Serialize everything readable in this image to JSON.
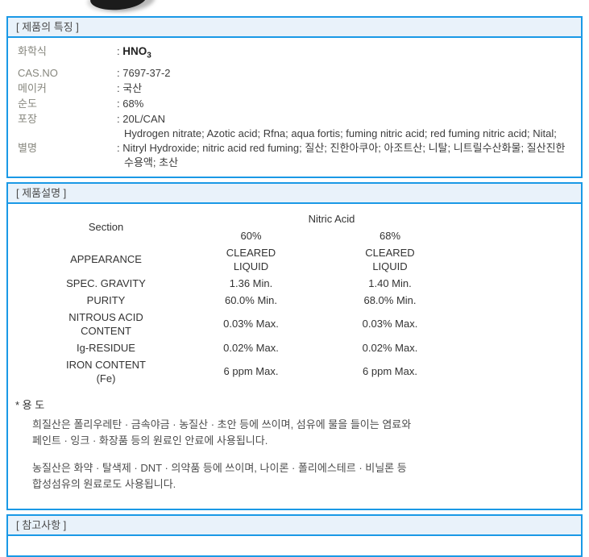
{
  "colors": {
    "border_blue": "#1a99e6",
    "header_bg": "#e9f2fa",
    "label_gray": "#87877e",
    "text_dark": "#3c3c3c"
  },
  "features": {
    "title": "[ 제품의 특징 ]",
    "rows": [
      {
        "label": "화학식",
        "colon": ":",
        "value": "HNO",
        "sub": "3"
      },
      {
        "label": "CAS.NO",
        "colon": ":",
        "value": "7697-37-2"
      },
      {
        "label": "메이커",
        "colon": ":",
        "value": "국산"
      },
      {
        "label": "순도",
        "colon": ":",
        "value": "68%"
      },
      {
        "label": "포장",
        "colon": ":",
        "value": "20L/CAN"
      }
    ],
    "alias": {
      "label": "별명",
      "line1": "Hydrogen nitrate; Azotic acid; Rfna; aqua fortis; fuming nitric acid; red fuming nitric acid; Nital;",
      "line2": ": Nitryl Hydroxide; nitric acid red fuming; 질산; 진한아쿠아; 아조트산; 니탈; 니트릴수산화물; 질산진한",
      "line3": "수용액; 초산"
    }
  },
  "description": {
    "title": "[ 제품설명 ]",
    "table": {
      "section_header": "Section",
      "group_header": "Nitric Acid",
      "col_a": "60%",
      "col_b": "68%",
      "rows": [
        {
          "n1": "APPEARANCE",
          "a1": "CLEARED",
          "a2": "LIQUID",
          "b1": "CLEARED",
          "b2": "LIQUID"
        },
        {
          "n1": "SPEC. GRAVITY",
          "a1": "1.36 Min.",
          "b1": "1.40 Min."
        },
        {
          "n1": "PURITY",
          "a1": "60.0% Min.",
          "b1": "68.0% Min."
        },
        {
          "n1": "NITROUS ACID",
          "n2": "CONTENT",
          "a1": "0.03% Max.",
          "b1": "0.03% Max."
        },
        {
          "n1": "Ig-RESIDUE",
          "a1": "0.02% Max.",
          "b1": "0.02% Max."
        },
        {
          "n1": "IRON CONTENT",
          "n2": "(Fe)",
          "a1": "6 ppm Max.",
          "b1": "6 ppm Max."
        }
      ]
    },
    "usage": {
      "heading": "* 용 도",
      "p1_line1": "희질산은 폴리우레탄 · 금속야금  · 농질산 · 초안 등에 쓰이며, 섬유에 물을 들이는 염료와",
      "p1_line2": "페인트  · 잉크  · 화장품 등의 원료인 안료에 사용됩니다.",
      "p2_line1": "농질산은 화약  · 탈색제  · DNT  · 의약품 등에 쓰이며, 나이론  · 폴리에스테르  · 비닐론 등",
      "p2_line2": "합성섬유의 원료로도 사용됩니다."
    }
  },
  "notes": {
    "title": "[ 참고사항 ]",
    "content": ""
  }
}
